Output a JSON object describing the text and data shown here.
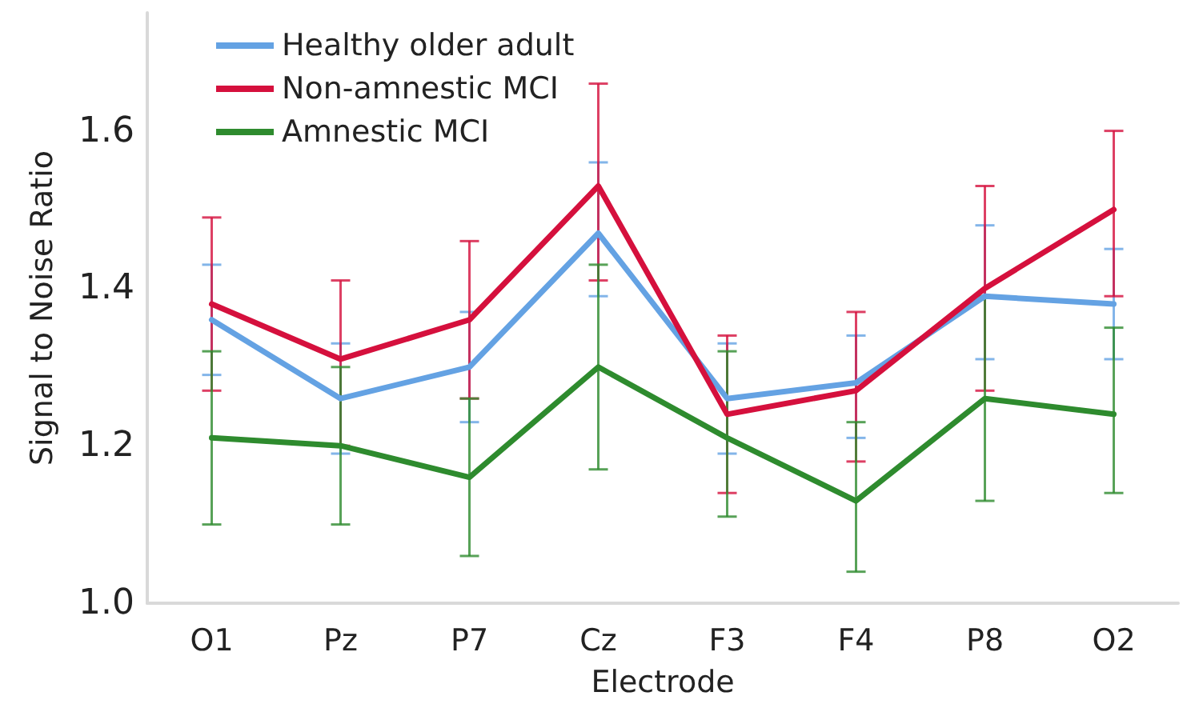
{
  "chart_data": {
    "type": "line",
    "xlabel": "Electrode",
    "ylabel": "Signal to Noise Ratio",
    "categories": [
      "O1",
      "Pz",
      "P7",
      "Cz",
      "F3",
      "F4",
      "P8",
      "O2"
    ],
    "ylim": [
      1.0,
      1.75
    ],
    "yticks": [
      {
        "value": 1.0,
        "label": "1.0"
      },
      {
        "value": 1.2,
        "label": "1.2"
      },
      {
        "value": 1.4,
        "label": "1.4"
      },
      {
        "value": 1.6,
        "label": "1.6"
      }
    ],
    "grid": false,
    "legend": "top left",
    "marker": "none",
    "line_style": "solid",
    "series": [
      {
        "name": "Healthy older adult",
        "color": "#64a2e3",
        "values": [
          1.36,
          1.26,
          1.3,
          1.47,
          1.26,
          1.28,
          1.39,
          1.38
        ],
        "errors": [
          [
            1.29,
            1.43
          ],
          [
            1.19,
            1.33
          ],
          [
            1.23,
            1.37
          ],
          [
            1.39,
            1.56
          ],
          [
            1.19,
            1.33
          ],
          [
            1.21,
            1.34
          ],
          [
            1.31,
            1.48
          ],
          [
            1.31,
            1.45
          ]
        ]
      },
      {
        "name": "Non-amnestic MCI",
        "color": "#d5103d",
        "values": [
          1.38,
          1.31,
          1.36,
          1.53,
          1.24,
          1.27,
          1.4,
          1.5
        ],
        "errors": [
          [
            1.27,
            1.49
          ],
          [
            1.2,
            1.41
          ],
          [
            1.26,
            1.46
          ],
          [
            1.41,
            1.66
          ],
          [
            1.14,
            1.34
          ],
          [
            1.18,
            1.37
          ],
          [
            1.27,
            1.53
          ],
          [
            1.39,
            1.6
          ]
        ]
      },
      {
        "name": "Amnestic MCI",
        "color": "#2e8b2e",
        "values": [
          1.21,
          1.2,
          1.16,
          1.3,
          1.21,
          1.13,
          1.26,
          1.24
        ],
        "errors": [
          [
            1.1,
            1.32
          ],
          [
            1.1,
            1.3
          ],
          [
            1.06,
            1.26
          ],
          [
            1.17,
            1.43
          ],
          [
            1.11,
            1.32
          ],
          [
            1.04,
            1.23
          ],
          [
            1.13,
            1.39
          ],
          [
            1.14,
            1.35
          ]
        ]
      }
    ]
  }
}
